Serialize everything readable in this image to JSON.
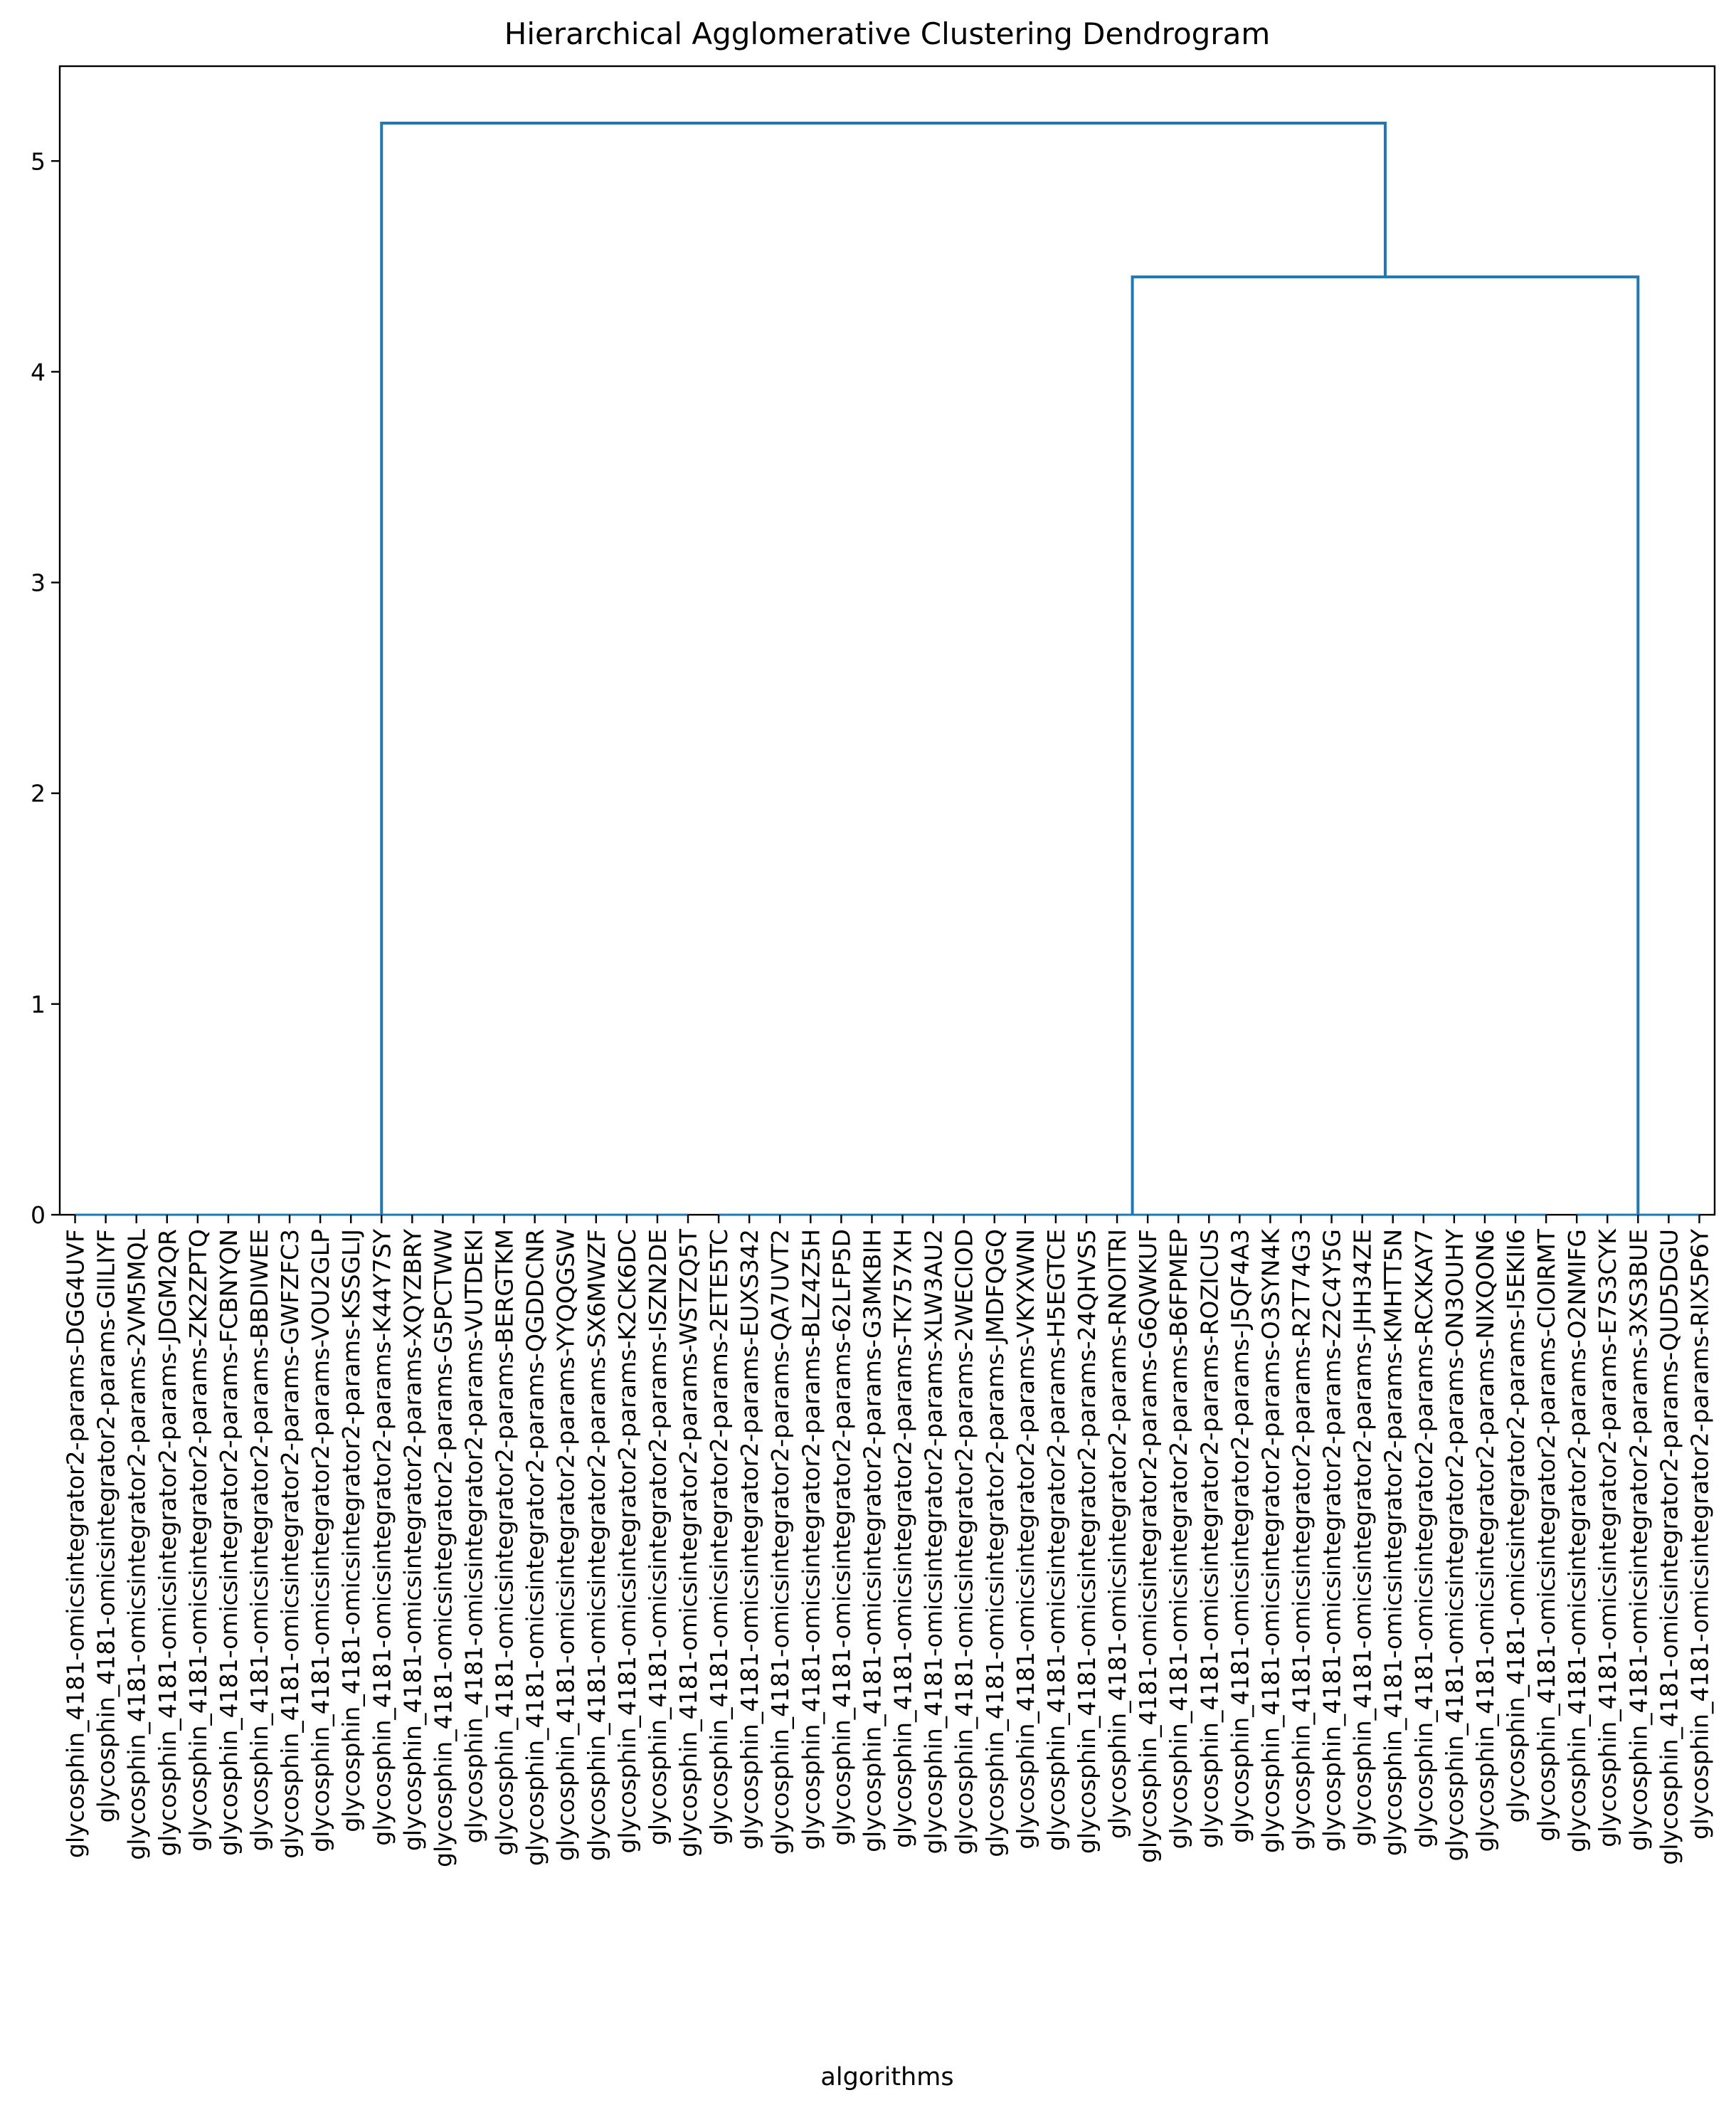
{
  "chart_data": {
    "type": "dendrogram",
    "title": "Hierarchical Agglomerative Clustering Dendrogram",
    "xlabel": "algorithms",
    "ylabel": "",
    "ylim": [
      0,
      5.45
    ],
    "yticks": [
      0,
      1,
      2,
      3,
      4,
      5
    ],
    "grid": false,
    "colors": {
      "link": "#1f77b4",
      "axis": "#000000"
    },
    "leaves": [
      "glycosphin_4181-omicsintegrator2-params-DGG4UVF",
      "glycosphin_4181-omicsintegrator2-params-GIILIYF",
      "glycosphin_4181-omicsintegrator2-params-2VM5MQL",
      "glycosphin_4181-omicsintegrator2-params-JDGM2QR",
      "glycosphin_4181-omicsintegrator2-params-ZK2ZPTQ",
      "glycosphin_4181-omicsintegrator2-params-FCBNYQN",
      "glycosphin_4181-omicsintegrator2-params-BBDIWEE",
      "glycosphin_4181-omicsintegrator2-params-GWFZFC3",
      "glycosphin_4181-omicsintegrator2-params-VOU2GLP",
      "glycosphin_4181-omicsintegrator2-params-KSSGLIJ",
      "glycosphin_4181-omicsintegrator2-params-K44Y7SY",
      "glycosphin_4181-omicsintegrator2-params-XQYZBRY",
      "glycosphin_4181-omicsintegrator2-params-G5PCTWW",
      "glycosphin_4181-omicsintegrator2-params-VUTDEKI",
      "glycosphin_4181-omicsintegrator2-params-BERGTKM",
      "glycosphin_4181-omicsintegrator2-params-QGDDCNR",
      "glycosphin_4181-omicsintegrator2-params-YYQQGSW",
      "glycosphin_4181-omicsintegrator2-params-SX6MWZF",
      "glycosphin_4181-omicsintegrator2-params-K2CK6DC",
      "glycosphin_4181-omicsintegrator2-params-ISZN2DE",
      "glycosphin_4181-omicsintegrator2-params-WSTZQ5T",
      "glycosphin_4181-omicsintegrator2-params-2ETE5TC",
      "glycosphin_4181-omicsintegrator2-params-EUXS342",
      "glycosphin_4181-omicsintegrator2-params-QA7UVT2",
      "glycosphin_4181-omicsintegrator2-params-BLZ4Z5H",
      "glycosphin_4181-omicsintegrator2-params-62LFP5D",
      "glycosphin_4181-omicsintegrator2-params-G3MKBIH",
      "glycosphin_4181-omicsintegrator2-params-TK757XH",
      "glycosphin_4181-omicsintegrator2-params-XLW3AU2",
      "glycosphin_4181-omicsintegrator2-params-2WECIOD",
      "glycosphin_4181-omicsintegrator2-params-JMDFQGQ",
      "glycosphin_4181-omicsintegrator2-params-VKYXWNI",
      "glycosphin_4181-omicsintegrator2-params-H5EGTCE",
      "glycosphin_4181-omicsintegrator2-params-24QHVS5",
      "glycosphin_4181-omicsintegrator2-params-RNOITRI",
      "glycosphin_4181-omicsintegrator2-params-G6QWKUF",
      "glycosphin_4181-omicsintegrator2-params-B6FPMEP",
      "glycosphin_4181-omicsintegrator2-params-ROZICUS",
      "glycosphin_4181-omicsintegrator2-params-J5QF4A3",
      "glycosphin_4181-omicsintegrator2-params-O3SYN4K",
      "glycosphin_4181-omicsintegrator2-params-R2T74G3",
      "glycosphin_4181-omicsintegrator2-params-Z2C4Y5G",
      "glycosphin_4181-omicsintegrator2-params-JHH34ZE",
      "glycosphin_4181-omicsintegrator2-params-KMHTT5N",
      "glycosphin_4181-omicsintegrator2-params-RCXKAY7",
      "glycosphin_4181-omicsintegrator2-params-ON3OUHY",
      "glycosphin_4181-omicsintegrator2-params-NIXQON6",
      "glycosphin_4181-omicsintegrator2-params-I5EKII6",
      "glycosphin_4181-omicsintegrator2-params-CIOIRMT",
      "glycosphin_4181-omicsintegrator2-params-O2NMIFG",
      "glycosphin_4181-omicsintegrator2-params-E7S3CYK",
      "glycosphin_4181-omicsintegrator2-params-3XS3BUE",
      "glycosphin_4181-omicsintegrator2-params-QUD5DGU",
      "glycosphin_4181-omicsintegrator2-params-RIX5P6Y"
    ],
    "zero_height_groups": [
      {
        "leaf_range": [
          0,
          20
        ]
      },
      {
        "leaf_range": [
          21,
          48
        ]
      },
      {
        "leaf_range": [
          49,
          53
        ]
      }
    ],
    "merges": [
      {
        "name": "merge-right",
        "children": [
          "group-2",
          "group-3"
        ],
        "height": 4.45
      },
      {
        "name": "merge-root",
        "children": [
          "group-1",
          "merge-right"
        ],
        "height": 5.18
      }
    ]
  }
}
